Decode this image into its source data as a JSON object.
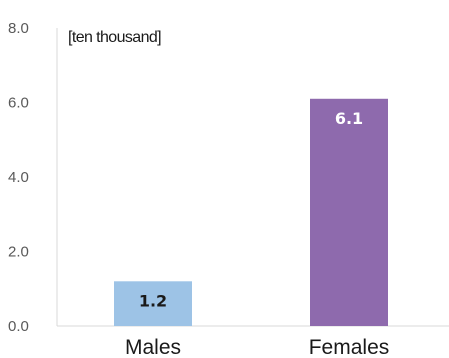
{
  "chart_data": {
    "type": "bar",
    "unit_label": "[ten thousand]",
    "categories": [
      "Males",
      "Females"
    ],
    "values": [
      1.2,
      6.1
    ],
    "data_labels": [
      "1.2",
      "6.1"
    ],
    "ytick_labels": [
      "0.0",
      "2.0",
      "4.0",
      "6.0",
      "8.0"
    ],
    "yticks": [
      0,
      2,
      4,
      6,
      8
    ],
    "ylim": [
      0,
      8
    ],
    "grid": false,
    "legend": "none",
    "colors": [
      "#9dc3e6",
      "#8e6aad"
    ],
    "label_colors": [
      "#1a1a1a",
      "#ffffff"
    ]
  }
}
